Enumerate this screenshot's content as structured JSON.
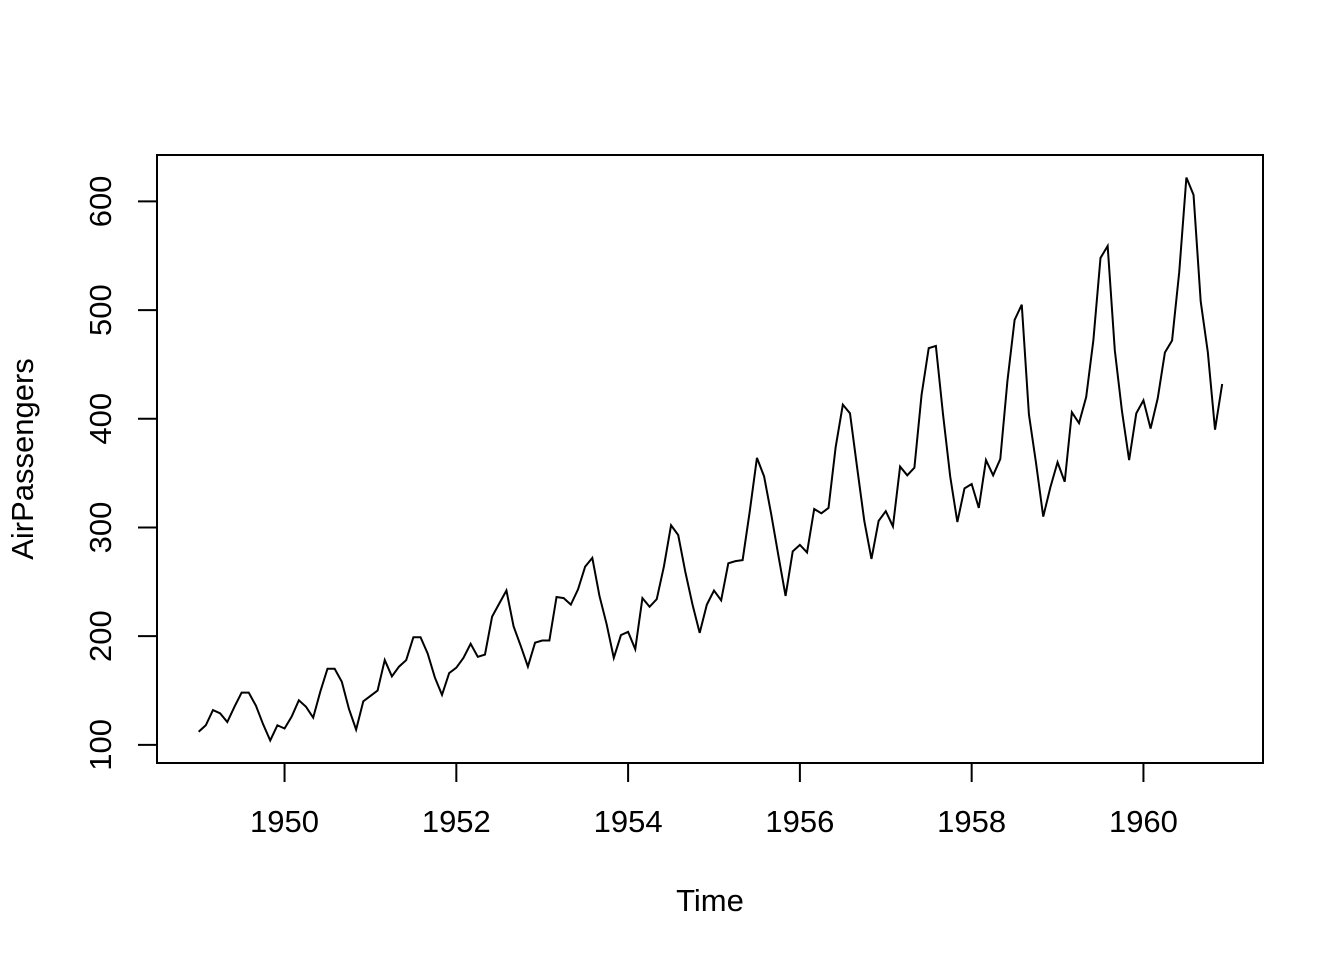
{
  "figure": {
    "background_color": "#ffffff",
    "foreground_color": "#000000"
  },
  "chart_data": {
    "type": "line",
    "title": "",
    "xlabel": "Time",
    "ylabel": "AirPassengers",
    "series": [
      {
        "name": "AirPassengers",
        "start_year": 1949,
        "frequency": 12,
        "values": [
          112,
          118,
          132,
          129,
          121,
          135,
          148,
          148,
          136,
          119,
          104,
          118,
          115,
          126,
          141,
          135,
          125,
          149,
          170,
          170,
          158,
          133,
          114,
          140,
          145,
          150,
          178,
          163,
          172,
          178,
          199,
          199,
          184,
          162,
          146,
          166,
          171,
          180,
          193,
          181,
          183,
          218,
          230,
          242,
          209,
          191,
          172,
          194,
          196,
          196,
          236,
          235,
          229,
          243,
          264,
          272,
          237,
          211,
          180,
          201,
          204,
          188,
          235,
          227,
          234,
          264,
          302,
          293,
          259,
          229,
          203,
          229,
          242,
          233,
          267,
          269,
          270,
          315,
          364,
          347,
          312,
          274,
          237,
          278,
          284,
          277,
          317,
          313,
          318,
          374,
          413,
          405,
          355,
          306,
          271,
          306,
          315,
          301,
          356,
          348,
          355,
          422,
          465,
          467,
          404,
          347,
          305,
          336,
          340,
          318,
          362,
          348,
          363,
          435,
          491,
          505,
          404,
          359,
          310,
          337,
          360,
          342,
          406,
          396,
          420,
          472,
          548,
          559,
          463,
          407,
          362,
          405,
          417,
          391,
          419,
          461,
          472,
          535,
          622,
          606,
          508,
          461,
          390,
          432
        ]
      }
    ],
    "x_ticks": [
      1950,
      1952,
      1954,
      1956,
      1958,
      1960
    ],
    "y_ticks": [
      100,
      200,
      300,
      400,
      500,
      600
    ],
    "xlim": [
      1948.515,
      1961.392
    ],
    "ylim": [
      83.28,
      642.72
    ],
    "grid": false,
    "legend": "none",
    "line_color": "#000000",
    "line_width": 2,
    "axis_color": "#000000",
    "y_tick_label_rotation": -90
  }
}
